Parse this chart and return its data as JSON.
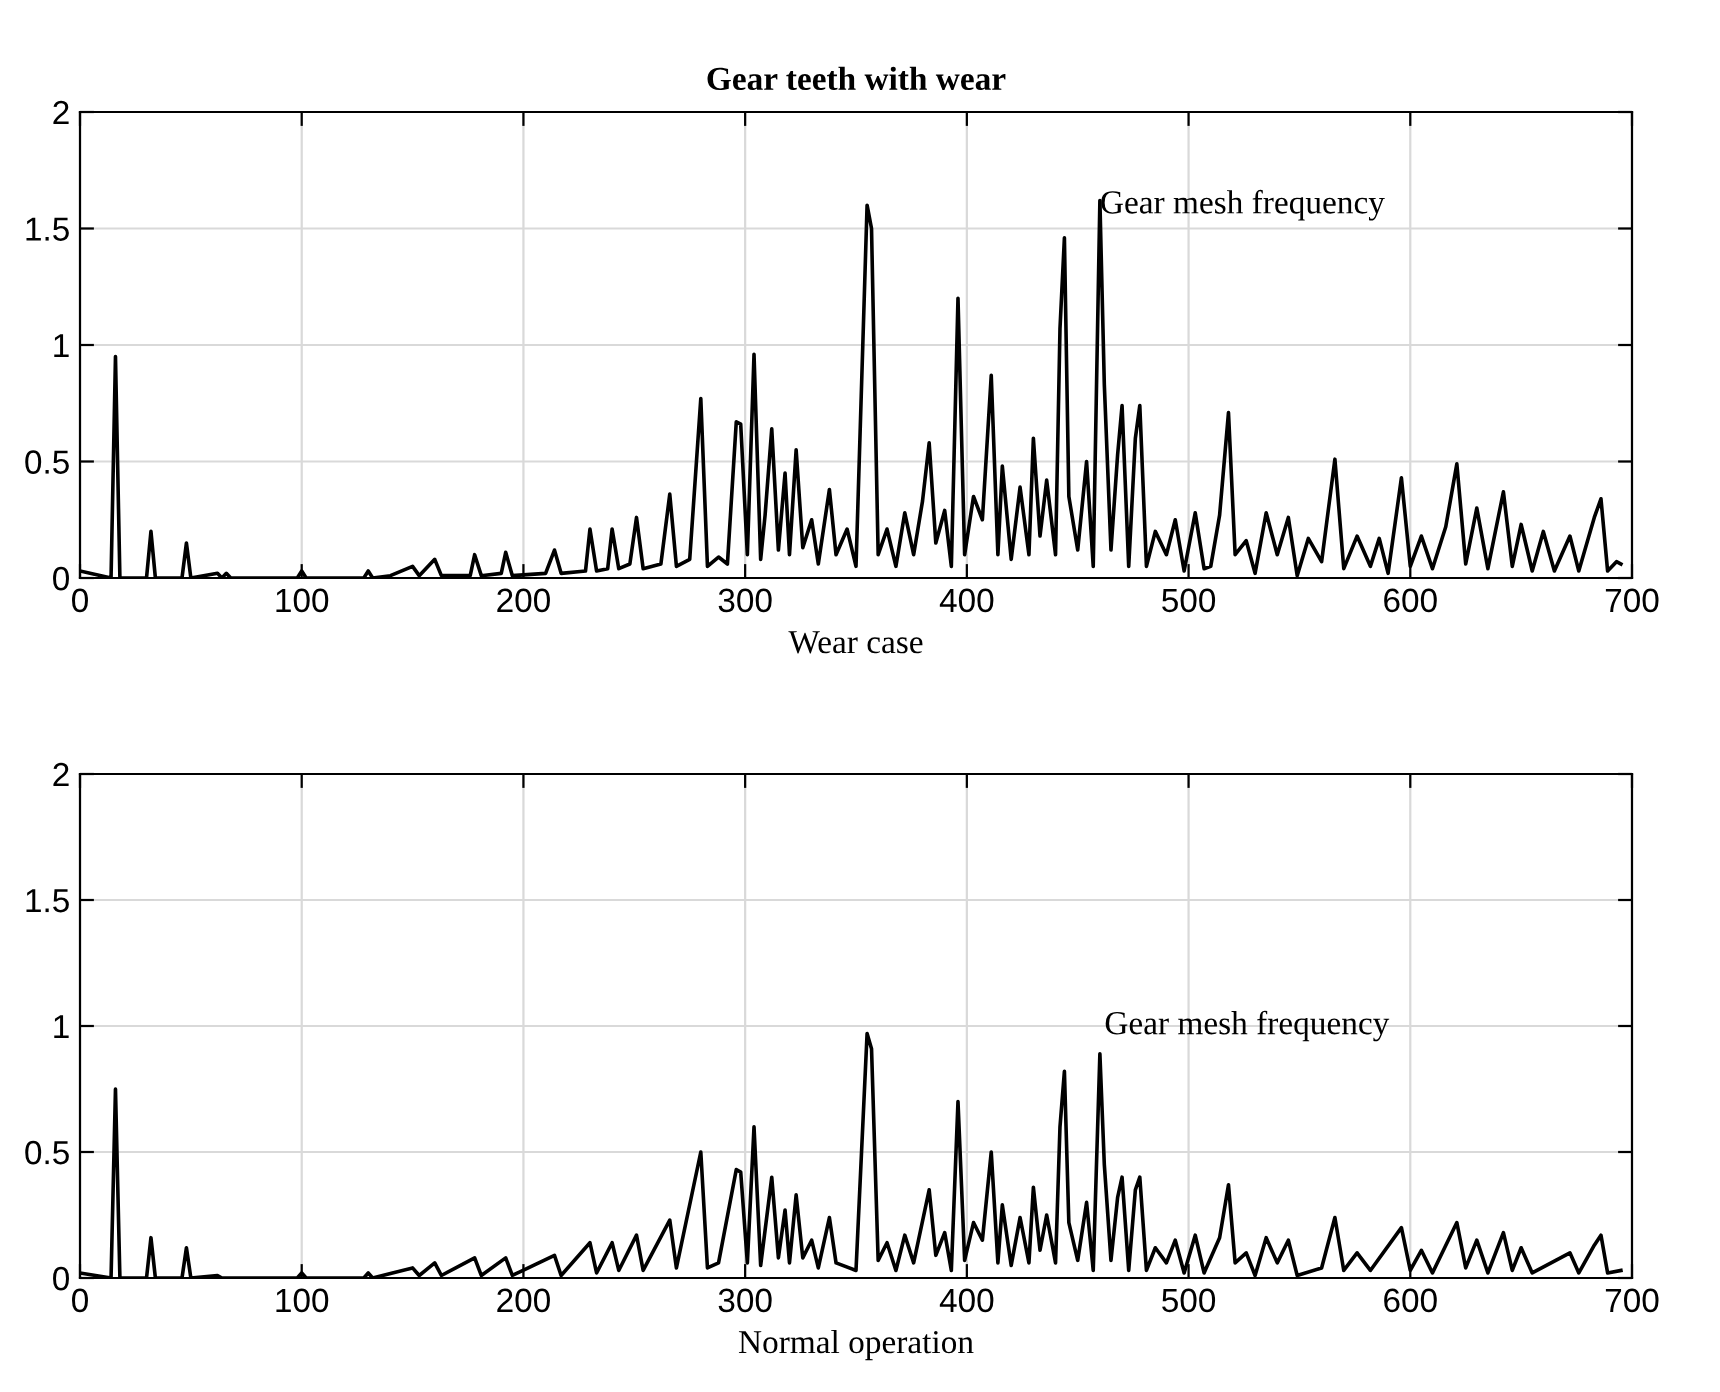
{
  "chart_data": [
    {
      "type": "line",
      "title": "Gear teeth with wear",
      "xlabel": "Wear case",
      "x": [
        0,
        14,
        16,
        18,
        30,
        32,
        34,
        46,
        48,
        50,
        62,
        64,
        66,
        68,
        98,
        100,
        102,
        128,
        130,
        132,
        140,
        150,
        153,
        160,
        163,
        176,
        178,
        181,
        190,
        192,
        195,
        210,
        214,
        217,
        228,
        230,
        233,
        238,
        240,
        243,
        248,
        251,
        254,
        262,
        266,
        269,
        275,
        280,
        283,
        288,
        292,
        296,
        298,
        301,
        304,
        307,
        309,
        312,
        315,
        318,
        320,
        323,
        326,
        330,
        333,
        338,
        341,
        346,
        350,
        355,
        357,
        360,
        364,
        368,
        372,
        376,
        380,
        383,
        386,
        390,
        393,
        396,
        399,
        403,
        407,
        411,
        414,
        416,
        420,
        424,
        428,
        430,
        433,
        436,
        440,
        442,
        444,
        446,
        450,
        454,
        457,
        460,
        462,
        465,
        468,
        470,
        473,
        476,
        478,
        481,
        485,
        490,
        494,
        498,
        503,
        507,
        510,
        514,
        518,
        521,
        526,
        530,
        535,
        540,
        545,
        549,
        554,
        560,
        566,
        570,
        576,
        582,
        586,
        590,
        596,
        600,
        605,
        610,
        616,
        621,
        625,
        630,
        635,
        642,
        646,
        650,
        655,
        660,
        665,
        672,
        676,
        683,
        686,
        689,
        693,
        695
      ],
      "series": [
        {
          "color": "#000000",
          "values": [
            0.03,
            0,
            0.95,
            0,
            0,
            0.2,
            0,
            0,
            0.15,
            0,
            0.02,
            0,
            0.02,
            0,
            0,
            0.03,
            0,
            0,
            0.03,
            0,
            0.01,
            0.05,
            0.01,
            0.08,
            0.01,
            0.01,
            0.1,
            0.01,
            0.02,
            0.11,
            0.01,
            0.02,
            0.12,
            0.02,
            0.03,
            0.21,
            0.03,
            0.04,
            0.21,
            0.04,
            0.06,
            0.26,
            0.04,
            0.06,
            0.36,
            0.05,
            0.08,
            0.77,
            0.05,
            0.09,
            0.06,
            0.67,
            0.66,
            0.1,
            0.96,
            0.08,
            0.27,
            0.64,
            0.12,
            0.45,
            0.1,
            0.55,
            0.13,
            0.25,
            0.06,
            0.38,
            0.1,
            0.21,
            0.05,
            1.6,
            1.5,
            0.1,
            0.21,
            0.05,
            0.28,
            0.1,
            0.33,
            0.58,
            0.15,
            0.29,
            0.05,
            1.2,
            0.1,
            0.35,
            0.25,
            0.87,
            0.1,
            0.48,
            0.08,
            0.39,
            0.1,
            0.6,
            0.18,
            0.42,
            0.1,
            1.07,
            1.46,
            0.35,
            0.12,
            0.5,
            0.05,
            1.62,
            0.83,
            0.12,
            0.53,
            0.74,
            0.05,
            0.6,
            0.74,
            0.05,
            0.2,
            0.1,
            0.25,
            0.03,
            0.28,
            0.04,
            0.05,
            0.27,
            0.71,
            0.1,
            0.16,
            0.02,
            0.28,
            0.1,
            0.26,
            0.01,
            0.17,
            0.07,
            0.51,
            0.04,
            0.18,
            0.05,
            0.17,
            0.02,
            0.43,
            0.05,
            0.18,
            0.04,
            0.22,
            0.49,
            0.06,
            0.3,
            0.04,
            0.37,
            0.05,
            0.23,
            0.03,
            0.2,
            0.03,
            0.18,
            0.03,
            0.26,
            0.34,
            0.03,
            0.07,
            0.06
          ]
        }
      ],
      "annotations": [
        {
          "text": "Gear mesh frequency",
          "x": 460,
          "y": 1.6
        }
      ],
      "xlim": [
        0,
        700
      ],
      "xticks": [
        0,
        100,
        200,
        300,
        400,
        500,
        600,
        700
      ],
      "ylim": [
        0,
        2
      ],
      "yticks": [
        0,
        0.5,
        1,
        1.5,
        2
      ],
      "grid": true
    },
    {
      "type": "line",
      "xlabel": "Normal operation",
      "x": [
        0,
        14,
        16,
        18,
        30,
        32,
        34,
        46,
        48,
        50,
        62,
        64,
        98,
        100,
        102,
        128,
        130,
        132,
        150,
        153,
        160,
        163,
        178,
        181,
        192,
        195,
        214,
        217,
        230,
        233,
        240,
        243,
        251,
        254,
        266,
        269,
        280,
        283,
        288,
        296,
        298,
        301,
        304,
        307,
        312,
        315,
        318,
        320,
        323,
        326,
        330,
        333,
        338,
        341,
        350,
        355,
        357,
        360,
        364,
        368,
        372,
        376,
        383,
        386,
        390,
        393,
        396,
        399,
        403,
        407,
        411,
        414,
        416,
        420,
        424,
        428,
        430,
        433,
        436,
        440,
        442,
        444,
        446,
        450,
        454,
        457,
        460,
        462,
        465,
        468,
        470,
        473,
        476,
        478,
        481,
        485,
        490,
        494,
        498,
        503,
        507,
        514,
        518,
        521,
        526,
        530,
        535,
        540,
        545,
        549,
        560,
        566,
        570,
        576,
        582,
        596,
        600,
        605,
        610,
        621,
        625,
        630,
        635,
        642,
        646,
        650,
        655,
        672,
        676,
        683,
        686,
        689,
        695
      ],
      "series": [
        {
          "color": "#000000",
          "values": [
            0.02,
            0,
            0.75,
            0,
            0,
            0.16,
            0,
            0,
            0.12,
            0,
            0.01,
            0,
            0,
            0.02,
            0,
            0,
            0.02,
            0,
            0.04,
            0.01,
            0.06,
            0.01,
            0.08,
            0.01,
            0.08,
            0.01,
            0.09,
            0.01,
            0.14,
            0.02,
            0.14,
            0.03,
            0.17,
            0.03,
            0.23,
            0.04,
            0.5,
            0.04,
            0.06,
            0.43,
            0.42,
            0.06,
            0.6,
            0.05,
            0.4,
            0.08,
            0.27,
            0.06,
            0.33,
            0.08,
            0.15,
            0.04,
            0.24,
            0.06,
            0.03,
            0.97,
            0.91,
            0.07,
            0.14,
            0.03,
            0.17,
            0.06,
            0.35,
            0.09,
            0.18,
            0.03,
            0.7,
            0.07,
            0.22,
            0.15,
            0.5,
            0.06,
            0.29,
            0.05,
            0.24,
            0.06,
            0.36,
            0.11,
            0.25,
            0.06,
            0.6,
            0.82,
            0.22,
            0.07,
            0.3,
            0.03,
            0.89,
            0.45,
            0.07,
            0.32,
            0.4,
            0.03,
            0.35,
            0.4,
            0.03,
            0.12,
            0.06,
            0.15,
            0.02,
            0.17,
            0.02,
            0.16,
            0.37,
            0.06,
            0.1,
            0.01,
            0.16,
            0.06,
            0.15,
            0.01,
            0.04,
            0.24,
            0.03,
            0.1,
            0.03,
            0.2,
            0.03,
            0.11,
            0.02,
            0.22,
            0.04,
            0.15,
            0.02,
            0.18,
            0.03,
            0.12,
            0.02,
            0.1,
            0.02,
            0.13,
            0.17,
            0.02,
            0.03
          ]
        }
      ],
      "annotations": [
        "Gear mesh frequency"
      ],
      "xlim": [
        0,
        700
      ],
      "xticks": [
        0,
        100,
        200,
        300,
        400,
        500,
        600,
        700
      ],
      "ylim": [
        0,
        2
      ],
      "yticks": [
        0,
        0.5,
        1,
        1.5,
        2
      ],
      "grid": true
    }
  ]
}
